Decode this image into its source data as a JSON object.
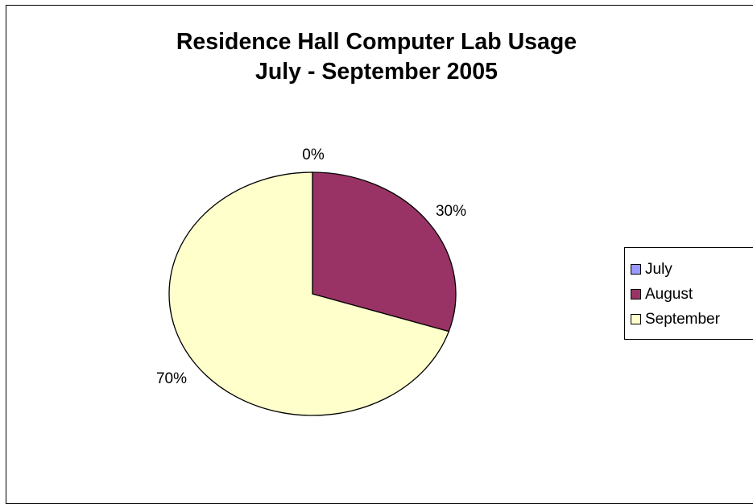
{
  "chart_data": {
    "type": "pie",
    "title": "Residence Hall Computer Lab Usage",
    "subtitle": "July - September 2005",
    "categories": [
      "July",
      "August",
      "September"
    ],
    "values": [
      0,
      30,
      70
    ],
    "labels": [
      "0%",
      "30%",
      "70%"
    ],
    "colors": [
      "#9999ff",
      "#993366",
      "#ffffcc"
    ],
    "legend_position": "right"
  }
}
